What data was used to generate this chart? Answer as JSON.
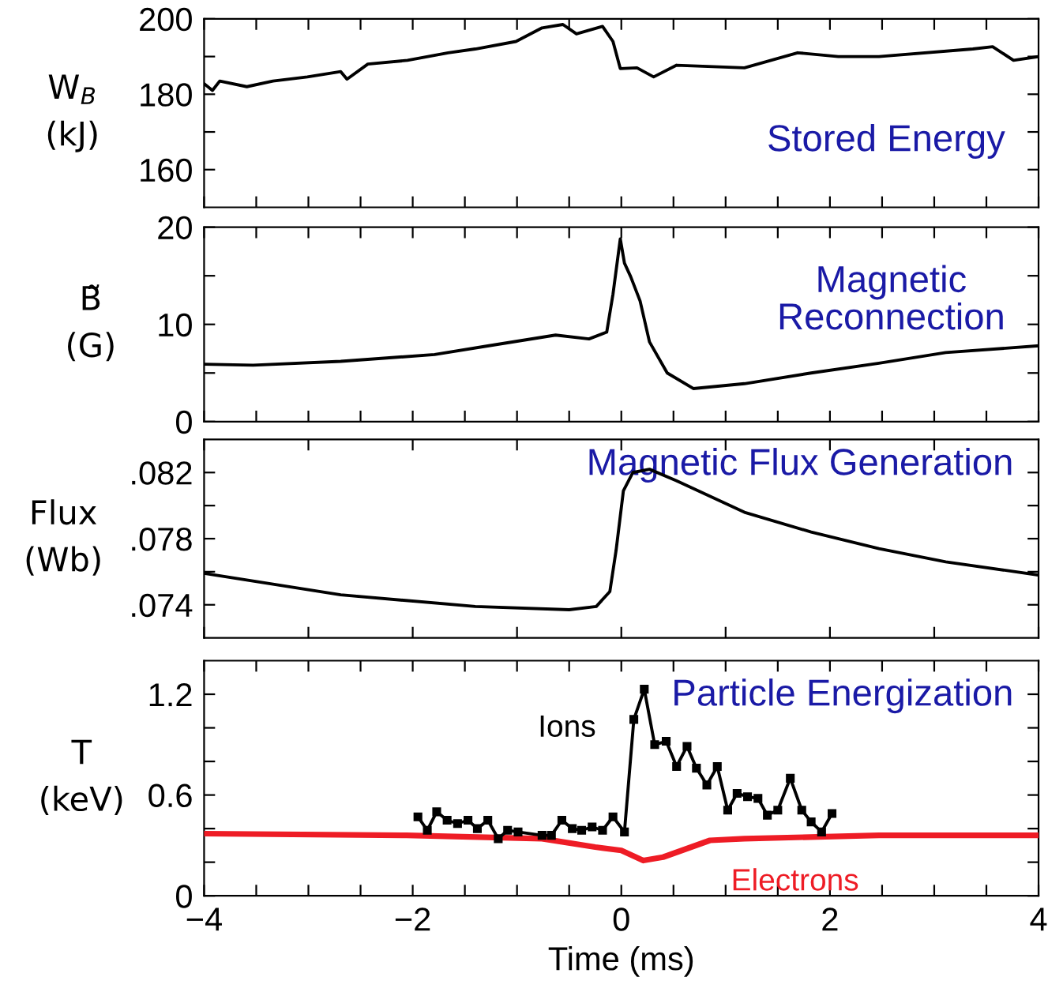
{
  "chart_data": [
    {
      "type": "line",
      "title": "Stored Energy",
      "ylabel": "W$_{B}$\n(kJ)",
      "xlim": [
        -4,
        4
      ],
      "ylim": [
        150,
        200
      ],
      "tick_labels": "y",
      "xticks": [
        {
          "value": -4,
          "label": null
        },
        {
          "value": -3.5,
          "label": null
        },
        {
          "value": -3,
          "label": null
        },
        {
          "value": -2.5,
          "label": null
        },
        {
          "value": -2,
          "label": null
        },
        {
          "value": -1.5,
          "label": null
        },
        {
          "value": -1,
          "label": null
        },
        {
          "value": -0.5,
          "label": null
        },
        {
          "value": 0,
          "label": null
        },
        {
          "value": 0.5,
          "label": null
        },
        {
          "value": 1,
          "label": null
        },
        {
          "value": 1.5,
          "label": null
        },
        {
          "value": 2,
          "label": null
        },
        {
          "value": 2.5,
          "label": null
        },
        {
          "value": 3,
          "label": null
        },
        {
          "value": 3.5,
          "label": null
        },
        {
          "value": 4,
          "label": null
        }
      ],
      "yticks": [
        160,
        {
          "value": 170,
          "label": null
        },
        180,
        {
          "value": 190,
          "label": null
        },
        200
      ],
      "series": [
        {
          "color": "#000000",
          "x": [
            -4,
            -3.92,
            -3.85,
            -3.59,
            -3.34,
            -3.01,
            -2.69,
            -2.63,
            -2.43,
            -2.05,
            -1.66,
            -1.4,
            -1.01,
            -0.76,
            -0.56,
            -0.43,
            -0.18,
            -0.08,
            -0.01,
            0.15,
            0.31,
            0.53,
            1.18,
            1.69,
            2.08,
            2.47,
            3.37,
            3.56,
            3.76,
            4.0
          ],
          "values": [
            182.8,
            181,
            183.5,
            182,
            183.5,
            184.6,
            186,
            184,
            188,
            189,
            191,
            192,
            194,
            197.6,
            198.5,
            196,
            198,
            194,
            186.8,
            187,
            184.6,
            187.7,
            187,
            191,
            190,
            190,
            192,
            192.6,
            189,
            190
          ]
        }
      ]
    },
    {
      "type": "line",
      "title": "Magnetic\nReconnection",
      "ylabel": "B̃\n(G)",
      "xlim": [
        -4,
        4
      ],
      "ylim": [
        0,
        20
      ],
      "tick_labels": "y",
      "xticks": [
        {
          "value": -4,
          "label": null
        },
        {
          "value": -3.5,
          "label": null
        },
        {
          "value": -3,
          "label": null
        },
        {
          "value": -2.5,
          "label": null
        },
        {
          "value": -2,
          "label": null
        },
        {
          "value": -1.5,
          "label": null
        },
        {
          "value": -1,
          "label": null
        },
        {
          "value": -0.5,
          "label": null
        },
        {
          "value": 0,
          "label": null
        },
        {
          "value": 0.5,
          "label": null
        },
        {
          "value": 1,
          "label": null
        },
        {
          "value": 1.5,
          "label": null
        },
        {
          "value": 2,
          "label": null
        },
        {
          "value": 2.5,
          "label": null
        },
        {
          "value": 3,
          "label": null
        },
        {
          "value": 3.5,
          "label": null
        },
        {
          "value": 4,
          "label": null
        }
      ],
      "yticks": [
        0,
        {
          "value": 5,
          "label": null
        },
        10,
        {
          "value": 15,
          "label": null
        },
        20
      ],
      "series": [
        {
          "color": "#000000",
          "x": [
            -4,
            -3.53,
            -2.69,
            -1.79,
            -1.27,
            -0.63,
            -0.31,
            -0.14,
            -0.08,
            -0.01,
            0.03,
            0.09,
            0.18,
            0.27,
            0.44,
            0.69,
            1.18,
            1.82,
            2.47,
            3.11,
            4.0
          ],
          "values": [
            5.9,
            5.8,
            6.2,
            6.9,
            7.8,
            8.9,
            8.5,
            9.2,
            13.1,
            18.8,
            16.3,
            14.9,
            12.4,
            8.2,
            5.0,
            3.4,
            3.9,
            5.0,
            6.0,
            7.1,
            7.8
          ]
        }
      ]
    },
    {
      "type": "line",
      "title": "Magnetic Flux Generation",
      "ylabel": "Flux\n(Wb)",
      "xlim": [
        -4,
        4
      ],
      "ylim": [
        0.072,
        0.084
      ],
      "tick_labels": "y",
      "xticks": [
        {
          "value": -4,
          "label": null
        },
        {
          "value": -3,
          "label": null
        },
        {
          "value": -2,
          "label": null
        },
        {
          "value": -1,
          "label": null
        },
        {
          "value": 0,
          "label": null
        },
        {
          "value": 1,
          "label": null
        },
        {
          "value": 2,
          "label": null
        },
        {
          "value": 3,
          "label": null
        },
        {
          "value": 4,
          "label": null
        }
      ],
      "yticks": [
        {
          "value": 0.074,
          "label": ".074"
        },
        {
          "value": 0.076,
          "label": null
        },
        {
          "value": 0.078,
          "label": ".078"
        },
        {
          "value": 0.08,
          "label": null
        },
        {
          "value": 0.082,
          "label": ".082"
        }
      ],
      "series": [
        {
          "color": "#000000",
          "x": [
            -4,
            -2.69,
            -1.4,
            -0.5,
            -0.24,
            -0.11,
            -0.05,
            0.02,
            0.11,
            0.27,
            0.53,
            1.18,
            1.82,
            2.47,
            3.11,
            4.0
          ],
          "values": [
            0.0759,
            0.0746,
            0.0739,
            0.0737,
            0.0739,
            0.0748,
            0.0773,
            0.0809,
            0.082,
            0.0822,
            0.0815,
            0.0796,
            0.0784,
            0.0774,
            0.0766,
            0.0758
          ]
        }
      ]
    },
    {
      "type": "line",
      "title": "Particle Energization",
      "ylabel": "T\n(keV)",
      "xlabel": "Time (ms)",
      "xlim": [
        -4,
        4
      ],
      "ylim": [
        0,
        1.4
      ],
      "xticks": [
        {
          "value": -4,
          "label": "−4"
        },
        {
          "value": -3.5,
          "label": null
        },
        {
          "value": -3,
          "label": null
        },
        {
          "value": -2.5,
          "label": null
        },
        {
          "value": -2,
          "label": "−2"
        },
        {
          "value": -1.5,
          "label": null
        },
        {
          "value": -1,
          "label": null
        },
        {
          "value": -0.5,
          "label": null
        },
        0,
        {
          "value": 0.5,
          "label": null
        },
        {
          "value": 1,
          "label": null
        },
        {
          "value": 1.5,
          "label": null
        },
        2,
        {
          "value": 2.5,
          "label": null
        },
        {
          "value": 3,
          "label": null
        },
        {
          "value": 3.5,
          "label": null
        },
        4
      ],
      "yticks": [
        0,
        {
          "value": 0.2,
          "label": null
        },
        {
          "value": 0.4,
          "label": null
        },
        0.6,
        {
          "value": 0.8,
          "label": null
        },
        {
          "value": 1.0,
          "label": null
        },
        1.2
      ],
      "series": [
        {
          "name": "Ions",
          "color": "#000000",
          "marker": "square",
          "x": [
            -1.95,
            -1.86,
            -1.77,
            -1.67,
            -1.57,
            -1.47,
            -1.38,
            -1.28,
            -1.18,
            -1.09,
            -0.99,
            -0.76,
            -0.67,
            -0.57,
            -0.47,
            -0.38,
            -0.28,
            -0.18,
            -0.08,
            0.03,
            0.12,
            0.22,
            0.32,
            0.43,
            0.53,
            0.63,
            0.72,
            0.82,
            0.92,
            1.02,
            1.11,
            1.21,
            1.31,
            1.4,
            1.5,
            1.62,
            1.73,
            1.82,
            1.92,
            2.02
          ],
          "values": [
            0.47,
            0.39,
            0.5,
            0.45,
            0.43,
            0.45,
            0.4,
            0.45,
            0.34,
            0.39,
            0.38,
            0.36,
            0.36,
            0.45,
            0.4,
            0.39,
            0.41,
            0.39,
            0.47,
            0.38,
            1.05,
            1.23,
            0.9,
            0.92,
            0.77,
            0.89,
            0.76,
            0.66,
            0.77,
            0.51,
            0.61,
            0.59,
            0.58,
            0.48,
            0.51,
            0.7,
            0.51,
            0.44,
            0.38,
            0.49
          ]
        },
        {
          "name": "Electrons",
          "color": "#ee1c25",
          "x": [
            -4,
            -2.06,
            -0.76,
            -0.25,
            0,
            0.21,
            0.4,
            0.85,
            1.18,
            2.47,
            4
          ],
          "values": [
            0.37,
            0.36,
            0.34,
            0.29,
            0.27,
            0.21,
            0.23,
            0.33,
            0.34,
            0.36,
            0.36
          ]
        }
      ]
    }
  ]
}
